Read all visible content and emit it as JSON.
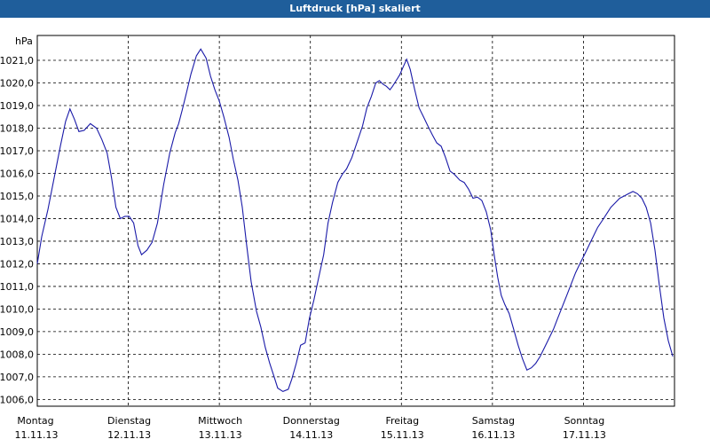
{
  "window": {
    "title": "Luftdruck [hPa] skaliert",
    "title_bar_color": "#1f5e9b"
  },
  "chart_data": {
    "type": "line",
    "title": "Luftdruck [hPa] skaliert",
    "ylabel": "hPa",
    "ylim": [
      1005.7,
      1022.1
    ],
    "yticks": [
      "1006,0",
      "1007,0",
      "1008,0",
      "1009,0",
      "1010,0",
      "1011,0",
      "1012,0",
      "1013,0",
      "1014,0",
      "1015,0",
      "1016,0",
      "1017,0",
      "1018,0",
      "1019,0",
      "1020,0",
      "1021,0"
    ],
    "xlim": [
      0,
      7
    ],
    "x_labels": [
      {
        "day": "Montag",
        "date": "11.11.13"
      },
      {
        "day": "Dienstag",
        "date": "12.11.13"
      },
      {
        "day": "Mittwoch",
        "date": "13.11.13"
      },
      {
        "day": "Donnerstag",
        "date": "14.11.13"
      },
      {
        "day": "Freitag",
        "date": "15.11.13"
      },
      {
        "day": "Samstag",
        "date": "16.11.13"
      },
      {
        "day": "Sonntag",
        "date": "17.11.13"
      }
    ],
    "grid": true,
    "line_color": "#1a1aa8",
    "series": [
      {
        "x": [
          0.0,
          0.049,
          0.117,
          0.185,
          0.253,
          0.311,
          0.359,
          0.408,
          0.457,
          0.515,
          0.583,
          0.651,
          0.709,
          0.767,
          0.816,
          0.864,
          0.913,
          0.962,
          1.01,
          1.059,
          1.107,
          1.146,
          1.204,
          1.262,
          1.32,
          1.388,
          1.456,
          1.515,
          1.553,
          1.592,
          1.641,
          1.689,
          1.748,
          1.796,
          1.854,
          1.903,
          1.951,
          2.0,
          2.049,
          2.107,
          2.155,
          2.204,
          2.252,
          2.301,
          2.35,
          2.408,
          2.456,
          2.505,
          2.553,
          2.602,
          2.641,
          2.699,
          2.757,
          2.796,
          2.845,
          2.893,
          2.942,
          2.99,
          3.039,
          3.087,
          3.146,
          3.194,
          3.243,
          3.301,
          3.35,
          3.398,
          3.456,
          3.515,
          3.573,
          3.621,
          3.67,
          3.718,
          3.757,
          3.796,
          3.835,
          3.874,
          3.903,
          3.942,
          3.981,
          4.019,
          4.058,
          4.097,
          4.146,
          4.194,
          4.243,
          4.291,
          4.34,
          4.388,
          4.437,
          4.485,
          4.534,
          4.583,
          4.641,
          4.689,
          4.738,
          4.786,
          4.835,
          4.883,
          4.932,
          4.981,
          5.019,
          5.058,
          5.097,
          5.136,
          5.184,
          5.233,
          5.282,
          5.33,
          5.379,
          5.427,
          5.476,
          5.524,
          5.573,
          5.621,
          5.67,
          5.718,
          5.767,
          5.816,
          5.864,
          5.913,
          5.961,
          6.01,
          6.058,
          6.107,
          6.155,
          6.204,
          6.252,
          6.301,
          6.35,
          6.398,
          6.447,
          6.495,
          6.544,
          6.592,
          6.641,
          6.689,
          6.738,
          6.786,
          6.835,
          6.883,
          6.932,
          6.981
        ],
        "y": [
          1012.0,
          1013.2,
          1014.4,
          1015.8,
          1017.2,
          1018.3,
          1018.85,
          1018.4,
          1017.85,
          1017.9,
          1018.2,
          1018.0,
          1017.5,
          1016.9,
          1015.8,
          1014.5,
          1014.0,
          1014.1,
          1014.1,
          1013.8,
          1012.8,
          1012.4,
          1012.6,
          1012.95,
          1013.8,
          1015.5,
          1016.9,
          1017.8,
          1018.2,
          1018.8,
          1019.6,
          1020.4,
          1021.2,
          1021.5,
          1021.1,
          1020.3,
          1019.7,
          1019.2,
          1018.5,
          1017.6,
          1016.6,
          1015.7,
          1014.5,
          1012.8,
          1011.2,
          1009.9,
          1009.2,
          1008.3,
          1007.6,
          1007.0,
          1006.5,
          1006.35,
          1006.45,
          1006.9,
          1007.6,
          1008.4,
          1008.5,
          1009.6,
          1010.4,
          1011.3,
          1012.4,
          1013.8,
          1014.7,
          1015.6,
          1015.95,
          1016.2,
          1016.7,
          1017.4,
          1018.1,
          1018.9,
          1019.4,
          1020.0,
          1020.1,
          1019.95,
          1019.85,
          1019.7,
          1019.85,
          1020.1,
          1020.35,
          1020.7,
          1021.05,
          1020.6,
          1019.7,
          1018.9,
          1018.5,
          1018.1,
          1017.7,
          1017.35,
          1017.2,
          1016.7,
          1016.1,
          1015.95,
          1015.7,
          1015.6,
          1015.3,
          1014.9,
          1014.95,
          1014.8,
          1014.3,
          1013.5,
          1012.4,
          1011.4,
          1010.6,
          1010.2,
          1009.8,
          1009.1,
          1008.4,
          1007.8,
          1007.3,
          1007.4,
          1007.6,
          1007.9,
          1008.3,
          1008.7,
          1009.1,
          1009.6,
          1010.1,
          1010.6,
          1011.1,
          1011.6,
          1012.0,
          1012.4,
          1012.8,
          1013.2,
          1013.6,
          1013.9,
          1014.2,
          1014.5,
          1014.7,
          1014.9,
          1015.0,
          1015.1,
          1015.2,
          1015.1,
          1014.9,
          1014.5,
          1013.8,
          1012.6,
          1011.0,
          1009.6,
          1008.6,
          1007.9
        ],
        "values_note_visible": false
      }
    ]
  }
}
